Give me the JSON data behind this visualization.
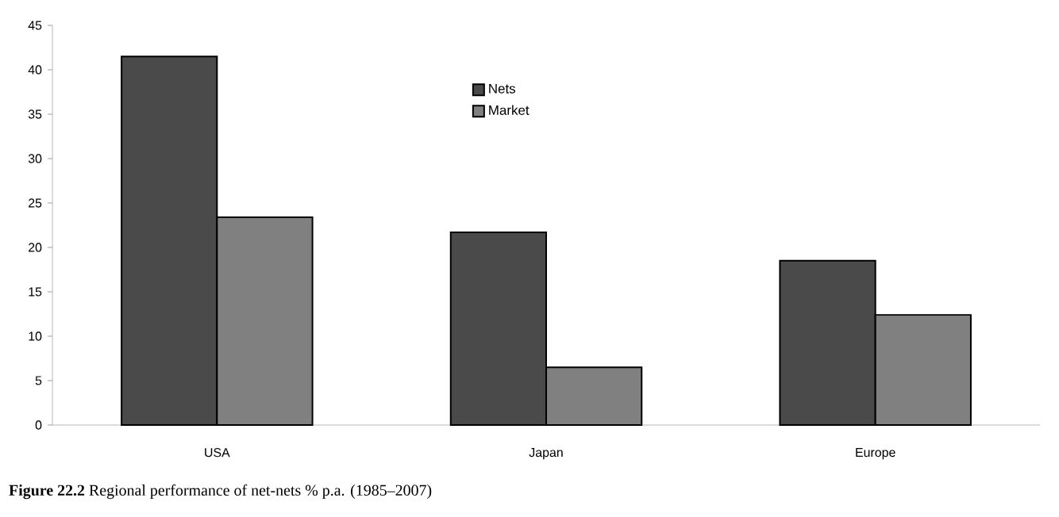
{
  "chart_data": {
    "type": "bar",
    "categories": [
      "USA",
      "Japan",
      "Europe"
    ],
    "series": [
      {
        "name": "Nets",
        "color": "#4a4a4a",
        "values": [
          41.5,
          21.7,
          18.5
        ]
      },
      {
        "name": "Market",
        "color": "#808080",
        "values": [
          23.4,
          6.5,
          12.4
        ]
      }
    ],
    "ylim": [
      0,
      45
    ],
    "yticks": [
      0,
      5,
      10,
      15,
      20,
      25,
      30,
      35,
      40,
      45
    ],
    "legend": "top",
    "annotations": [
      "**Figure 22.2**  Regional performance of net-nets % p.a. (1985–2007)"
    ]
  }
}
